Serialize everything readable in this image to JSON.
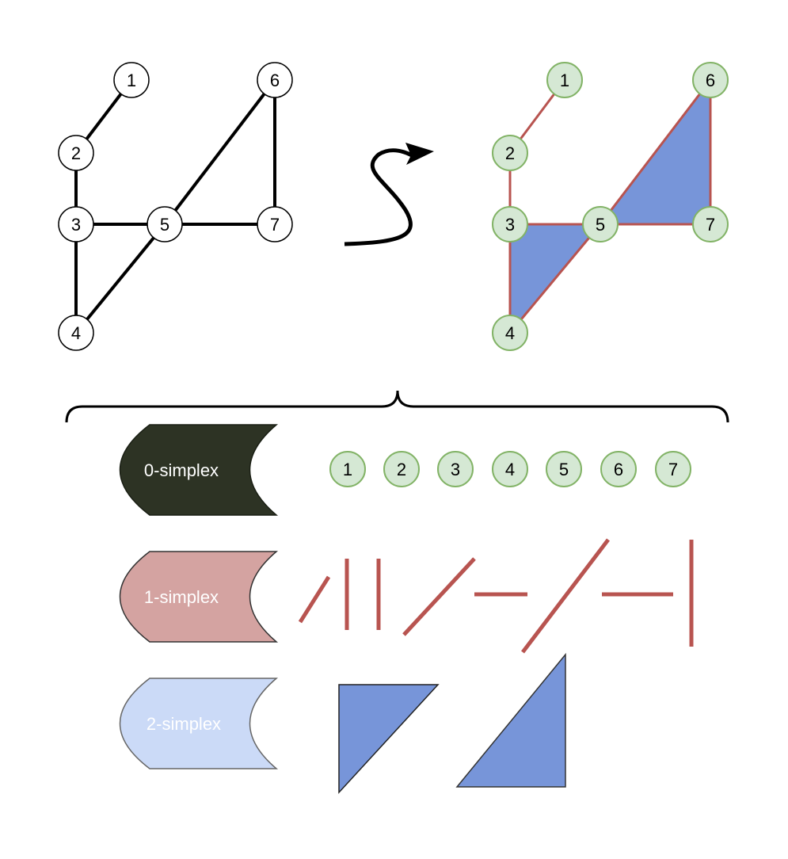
{
  "graph": {
    "nodes": [
      "1",
      "2",
      "3",
      "4",
      "5",
      "6",
      "7"
    ],
    "edges": [
      [
        "1",
        "2"
      ],
      [
        "2",
        "3"
      ],
      [
        "3",
        "5"
      ],
      [
        "3",
        "4"
      ],
      [
        "4",
        "5"
      ],
      [
        "5",
        "6"
      ],
      [
        "5",
        "7"
      ],
      [
        "6",
        "7"
      ]
    ]
  },
  "complex": {
    "nodes": [
      "1",
      "2",
      "3",
      "4",
      "5",
      "6",
      "7"
    ],
    "triangles": [
      [
        "3",
        "4",
        "5"
      ],
      [
        "5",
        "6",
        "7"
      ]
    ]
  },
  "legend": {
    "zero_simplex": {
      "label": "0-simplex",
      "nodes": [
        "1",
        "2",
        "3",
        "4",
        "5",
        "6",
        "7"
      ]
    },
    "one_simplex": {
      "label": "1-simplex"
    },
    "two_simplex": {
      "label": "2-simplex"
    }
  },
  "colors": {
    "node_fill": "#d5e8d4",
    "node_stroke": "#82b366",
    "edge": "#b85450",
    "triangle_fill": "#7795d9",
    "zero_shape_fill": "#2d3324",
    "one_shape_fill": "#d4a3a1",
    "two_shape_fill": "#cbdaf7"
  }
}
